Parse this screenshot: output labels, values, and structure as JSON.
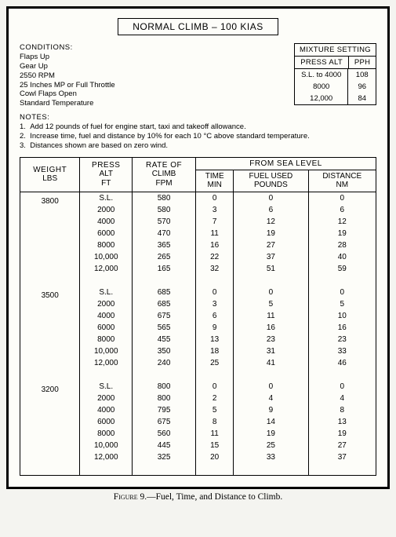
{
  "title": "NORMAL CLIMB – 100 KIAS",
  "conditions": {
    "label": "CONDITIONS:",
    "lines": [
      "Flaps Up",
      "Gear Up",
      "2550 RPM",
      "25 Inches MP or Full Throttle",
      "Cowl Flaps Open",
      "Standard Temperature"
    ]
  },
  "mixture": {
    "header": "MIXTURE SETTING",
    "col1": "PRESS ALT",
    "col2": "PPH",
    "rows": [
      {
        "alt": "S.L. to 4000",
        "pph": "108"
      },
      {
        "alt": "8000",
        "pph": "96"
      },
      {
        "alt": "12,000",
        "pph": "84"
      }
    ]
  },
  "notes": {
    "label": "NOTES:",
    "items": [
      "Add 12 pounds of fuel for engine start, taxi and takeoff allowance.",
      "Increase time, fuel and distance by 10% for each 10 °C above standard temperature.",
      "Distances shown are based on zero wind."
    ]
  },
  "table": {
    "headers": {
      "weight1": "WEIGHT",
      "weight2": "LBS",
      "press1": "PRESS",
      "press2": "ALT",
      "press3": "FT",
      "rate1": "RATE OF",
      "rate2": "CLIMB",
      "rate3": "FPM",
      "from": "FROM SEA LEVEL",
      "time1": "TIME",
      "time2": "MIN",
      "fuel1": "FUEL USED",
      "fuel2": "POUNDS",
      "dist1": "DISTANCE",
      "dist2": "NM"
    },
    "groups": [
      {
        "weight": "3800",
        "rows": [
          {
            "alt": "S.L.",
            "roc": "580",
            "time": "0",
            "fuel": "0",
            "dist": "0"
          },
          {
            "alt": "2000",
            "roc": "580",
            "time": "3",
            "fuel": "6",
            "dist": "6"
          },
          {
            "alt": "4000",
            "roc": "570",
            "time": "7",
            "fuel": "12",
            "dist": "12"
          },
          {
            "alt": "6000",
            "roc": "470",
            "time": "11",
            "fuel": "19",
            "dist": "19"
          },
          {
            "alt": "8000",
            "roc": "365",
            "time": "16",
            "fuel": "27",
            "dist": "28"
          },
          {
            "alt": "10,000",
            "roc": "265",
            "time": "22",
            "fuel": "37",
            "dist": "40"
          },
          {
            "alt": "12,000",
            "roc": "165",
            "time": "32",
            "fuel": "51",
            "dist": "59"
          }
        ]
      },
      {
        "weight": "3500",
        "rows": [
          {
            "alt": "S.L.",
            "roc": "685",
            "time": "0",
            "fuel": "0",
            "dist": "0"
          },
          {
            "alt": "2000",
            "roc": "685",
            "time": "3",
            "fuel": "5",
            "dist": "5"
          },
          {
            "alt": "4000",
            "roc": "675",
            "time": "6",
            "fuel": "11",
            "dist": "10"
          },
          {
            "alt": "6000",
            "roc": "565",
            "time": "9",
            "fuel": "16",
            "dist": "16"
          },
          {
            "alt": "8000",
            "roc": "455",
            "time": "13",
            "fuel": "23",
            "dist": "23"
          },
          {
            "alt": "10,000",
            "roc": "350",
            "time": "18",
            "fuel": "31",
            "dist": "33"
          },
          {
            "alt": "12,000",
            "roc": "240",
            "time": "25",
            "fuel": "41",
            "dist": "46"
          }
        ]
      },
      {
        "weight": "3200",
        "rows": [
          {
            "alt": "S.L.",
            "roc": "800",
            "time": "0",
            "fuel": "0",
            "dist": "0"
          },
          {
            "alt": "2000",
            "roc": "800",
            "time": "2",
            "fuel": "4",
            "dist": "4"
          },
          {
            "alt": "4000",
            "roc": "795",
            "time": "5",
            "fuel": "9",
            "dist": "8"
          },
          {
            "alt": "6000",
            "roc": "675",
            "time": "8",
            "fuel": "14",
            "dist": "13"
          },
          {
            "alt": "8000",
            "roc": "560",
            "time": "11",
            "fuel": "19",
            "dist": "19"
          },
          {
            "alt": "10,000",
            "roc": "445",
            "time": "15",
            "fuel": "25",
            "dist": "27"
          },
          {
            "alt": "12,000",
            "roc": "325",
            "time": "20",
            "fuel": "33",
            "dist": "37"
          }
        ]
      }
    ]
  },
  "caption": {
    "fig": "Figure 9.",
    "text": "—Fuel, Time, and Distance to Climb."
  }
}
